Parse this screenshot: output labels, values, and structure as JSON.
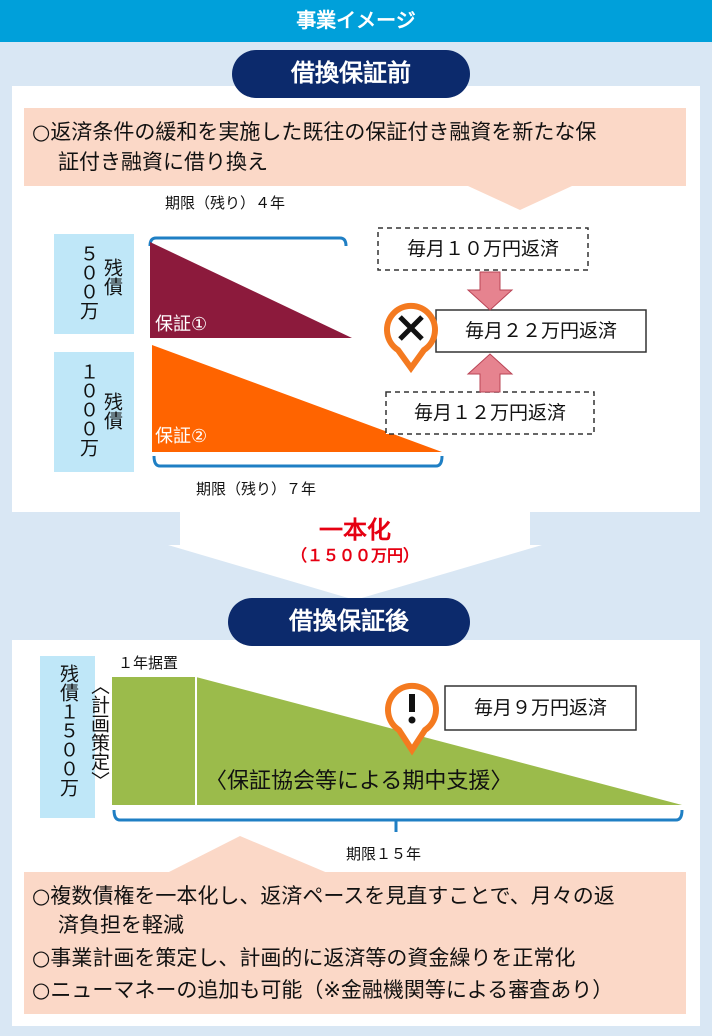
{
  "header": {
    "title": "事業イメージ"
  },
  "before": {
    "title": "借換保証前",
    "note": [
      "○返済条件の緩和を実施した既往の保証付き融資を新たな保",
      "証付き融資に借り換え"
    ],
    "loans": [
      {
        "amount": "５００万",
        "label": "残債",
        "guarantee": "保証①",
        "period": "期限（残り）４年"
      },
      {
        "amount": "１０００万",
        "label": "残債",
        "guarantee": "保証②",
        "period": "期限（残り）７年"
      }
    ],
    "payments": [
      "毎月１０万円返済",
      "毎月２２万円返済",
      "毎月１２万円返済"
    ]
  },
  "merge": {
    "title": "一本化",
    "amount": "（１５００万円）"
  },
  "after": {
    "title": "借換保証後",
    "balance": "残債１５００万",
    "plan": "〈計画策定〉",
    "deferral": "１年据置",
    "support": "〈保証協会等による期中支援〉",
    "payment": "毎月９万円返済",
    "period": "期限１５年",
    "notes": [
      "○複数債権を一本化し、返済ペースを見直すことで、月々の返",
      "済負担を軽減",
      "○事業計画を策定し、計画的に返済等の資金繰りを正常化",
      "○ニューマネーの追加も可能（※金融機関等による審査あり）"
    ]
  }
}
